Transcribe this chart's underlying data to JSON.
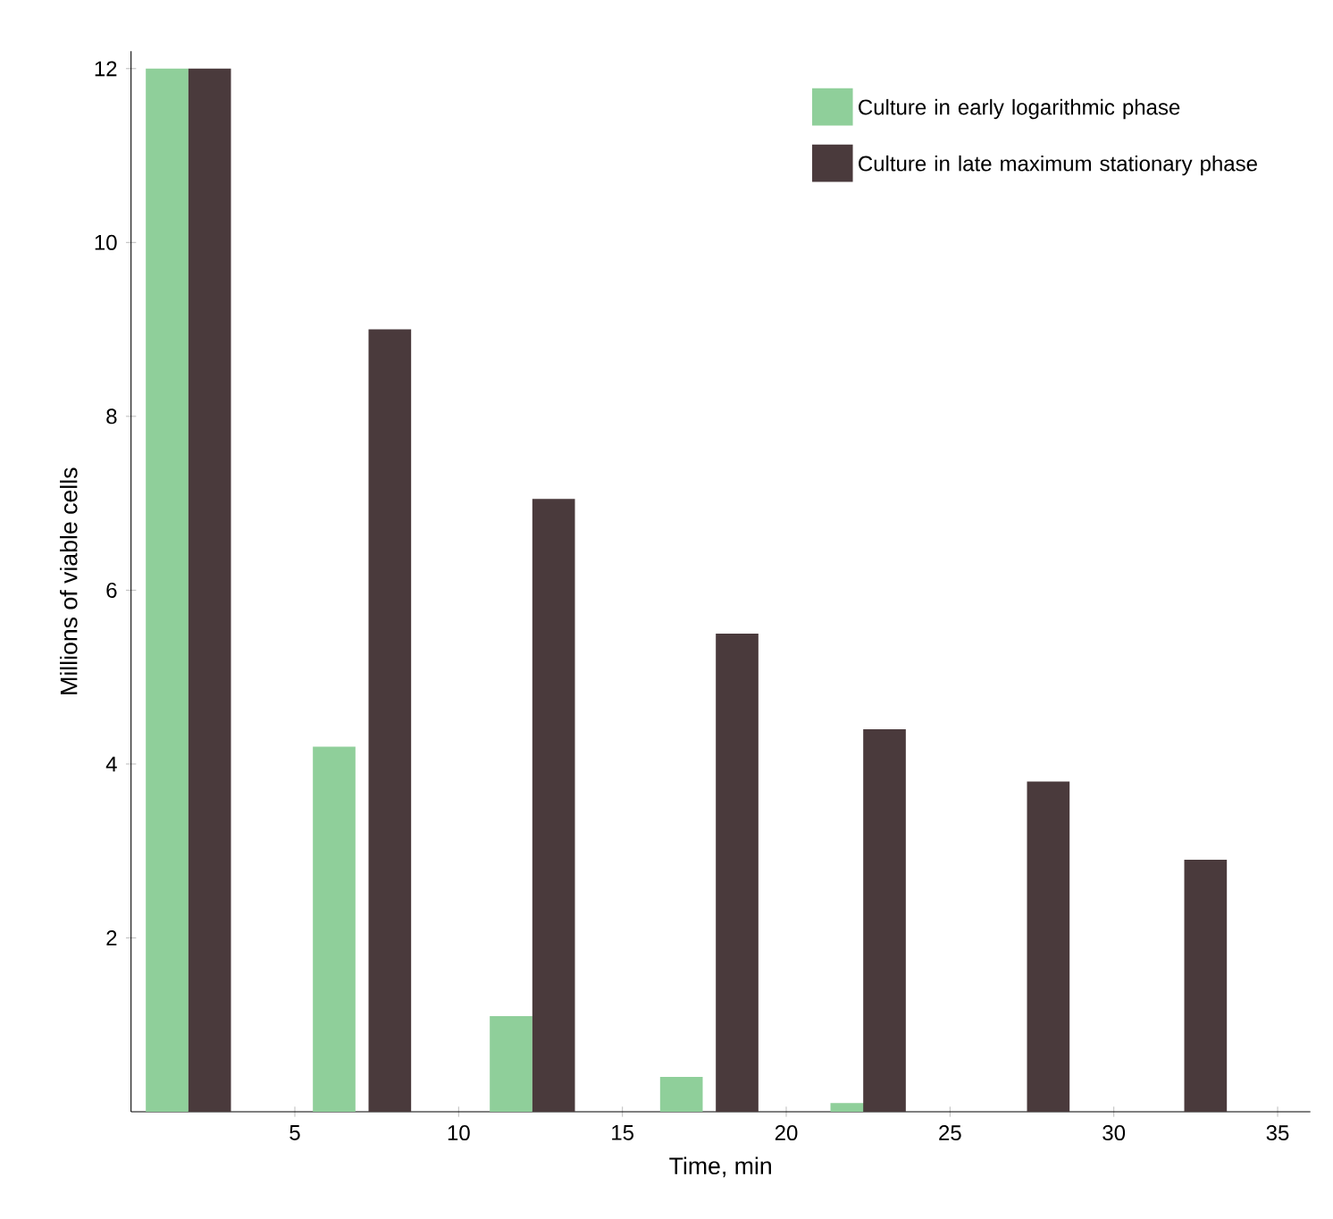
{
  "chart_data": {
    "type": "bar",
    "xlabel": "Time, min",
    "ylabel": "Millions of viable cells",
    "series": [
      {
        "name": "Culture in early logarithmic phase",
        "color": "#8fcf9a",
        "x": [
          1.1,
          6.2,
          11.6,
          16.8,
          22.0
        ],
        "values": [
          12,
          4.2,
          1.1,
          0.4,
          0.1
        ]
      },
      {
        "name": "Culture in late maximum stationary phase",
        "color": "#4a3a3c",
        "x": [
          2.4,
          7.9,
          12.9,
          18.5,
          23.0,
          28.0,
          32.8
        ],
        "values": [
          12,
          9,
          7.05,
          5.5,
          4.4,
          3.8,
          2.9
        ]
      }
    ],
    "xlim": [
      0,
      36
    ],
    "ylim": [
      0,
      12.2
    ],
    "xticks": [
      5,
      10,
      15,
      20,
      25,
      30,
      35
    ],
    "yticks": [
      2,
      4,
      6,
      8,
      10,
      12
    ],
    "grid": false,
    "legend": "top right"
  }
}
